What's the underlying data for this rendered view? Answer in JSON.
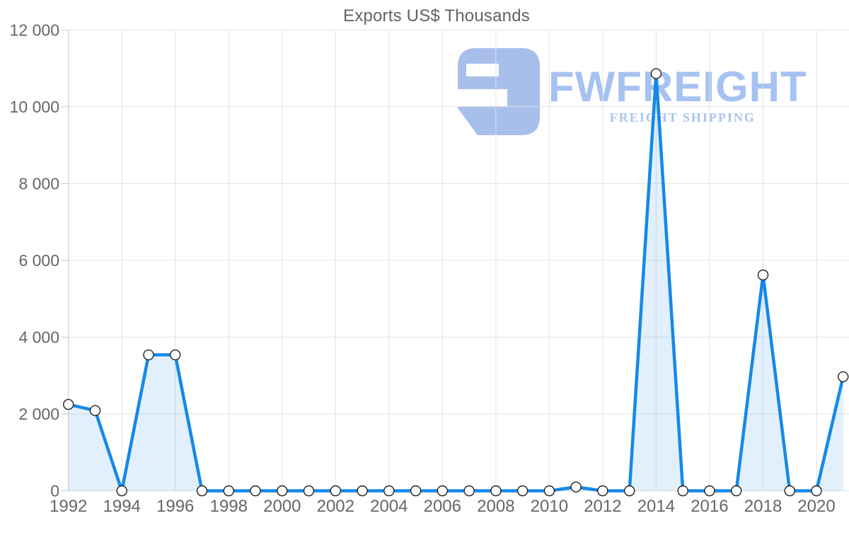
{
  "page": {
    "background": "#ffffff"
  },
  "chart_data": {
    "type": "area",
    "title": "Exports US$ Thousands",
    "x": [
      1992,
      1993,
      1994,
      1995,
      1996,
      1997,
      1998,
      1999,
      2000,
      2001,
      2002,
      2003,
      2004,
      2005,
      2006,
      2007,
      2008,
      2009,
      2010,
      2011,
      2012,
      2013,
      2014,
      2015,
      2016,
      2017,
      2018,
      2019,
      2020,
      2021
    ],
    "values": [
      2250,
      2090,
      0,
      3540,
      3540,
      0,
      0,
      0,
      0,
      0,
      0,
      0,
      0,
      0,
      0,
      0,
      0,
      0,
      0,
      100,
      0,
      0,
      10860,
      0,
      0,
      0,
      5620,
      0,
      0,
      2970
    ],
    "xlabel": "",
    "ylabel": "",
    "ylim": [
      0,
      12000
    ],
    "ytick_values": [
      0,
      2000,
      4000,
      6000,
      8000,
      10000,
      12000
    ],
    "ytick_labels": [
      "0",
      "2 000",
      "4 000",
      "6 000",
      "8 000",
      "10 000",
      "12 000"
    ],
    "xtick_values": [
      1992,
      1994,
      1996,
      1998,
      2000,
      2002,
      2004,
      2006,
      2008,
      2010,
      2012,
      2014,
      2016,
      2018,
      2020
    ],
    "xtick_labels": [
      "1992",
      "1994",
      "1996",
      "1998",
      "2000",
      "2002",
      "2004",
      "2006",
      "2008",
      "2010",
      "2012",
      "2014",
      "2016",
      "2018",
      "2020"
    ],
    "grid": true,
    "legend": "none",
    "line_color": "#1589e9",
    "fill_color": "rgba(27,140,232,0.13)",
    "marker_fill": "#ffffff",
    "marker_stroke": "#222222",
    "grid_color": "#e2e2e2",
    "axis_line_color": "#c9c9c9",
    "axis_label_color": "#666666",
    "title_color": "#636363"
  },
  "watermark": {
    "brand": "FWFREIGHT",
    "tagline": "FREIGHT SHIPPING",
    "color": "#a5c2f1",
    "icon": "fwfreight-logo-mark",
    "icon_color": "#a8bfeb"
  }
}
